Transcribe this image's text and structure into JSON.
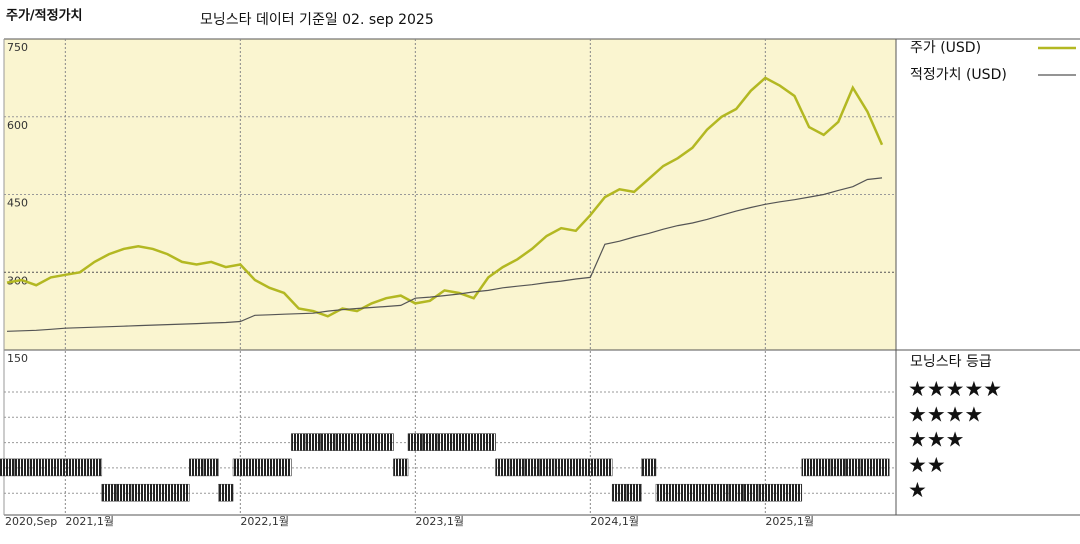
{
  "chart_data": [
    {
      "type": "line",
      "title": "주가/적정가치",
      "subtitle": "모닝스타 데이터 기준일 02. sep 2025",
      "x": [
        "2020-09",
        "2020-10",
        "2020-11",
        "2020-12",
        "2021-01",
        "2021-02",
        "2021-03",
        "2021-04",
        "2021-05",
        "2021-06",
        "2021-07",
        "2021-08",
        "2021-09",
        "2021-10",
        "2021-11",
        "2021-12",
        "2022-01",
        "2022-02",
        "2022-03",
        "2022-04",
        "2022-05",
        "2022-06",
        "2022-07",
        "2022-08",
        "2022-09",
        "2022-10",
        "2022-11",
        "2022-12",
        "2023-01",
        "2023-02",
        "2023-03",
        "2023-04",
        "2023-05",
        "2023-06",
        "2023-07",
        "2023-08",
        "2023-09",
        "2023-10",
        "2023-11",
        "2023-12",
        "2024-01",
        "2024-02",
        "2024-03",
        "2024-04",
        "2024-05",
        "2024-06",
        "2024-07",
        "2024-08",
        "2024-09",
        "2024-10",
        "2024-11",
        "2024-12",
        "2025-01",
        "2025-02",
        "2025-03",
        "2025-04",
        "2025-05",
        "2025-06",
        "2025-07",
        "2025-08",
        "2025-09"
      ],
      "xticks": [
        {
          "value": "2020-09",
          "label": "2020,Sep"
        },
        {
          "value": "2021-01",
          "label": "2021,1월"
        },
        {
          "value": "2022-01",
          "label": "2022,1월"
        },
        {
          "value": "2023-01",
          "label": "2023,1월"
        },
        {
          "value": "2024-01",
          "label": "2024,1월"
        },
        {
          "value": "2025-01",
          "label": "2025,1월"
        }
      ],
      "ylim": [
        150,
        750
      ],
      "yticks": [
        150,
        300,
        450,
        600,
        750
      ],
      "grid": true,
      "series": [
        {
          "name": "주가 (USD)",
          "color": "#b3b822",
          "values": [
            280,
            285,
            275,
            290,
            295,
            300,
            320,
            335,
            345,
            350,
            345,
            335,
            320,
            315,
            320,
            310,
            315,
            285,
            270,
            260,
            230,
            225,
            215,
            230,
            225,
            240,
            250,
            255,
            240,
            245,
            265,
            260,
            250,
            290,
            310,
            325,
            345,
            370,
            385,
            380,
            410,
            445,
            460,
            455,
            480,
            505,
            520,
            540,
            575,
            600,
            615,
            650,
            675,
            660,
            640,
            580,
            565,
            590,
            656,
            610,
            546
          ]
        },
        {
          "name": "적정가치 (USD)",
          "color": "#555555",
          "values": [
            186,
            187,
            188,
            190,
            192,
            193,
            194,
            195,
            196,
            197,
            198,
            199,
            200,
            201,
            202,
            203,
            205,
            217,
            218,
            219,
            220,
            221,
            225,
            228,
            230,
            232,
            234,
            236,
            250,
            252,
            255,
            258,
            262,
            265,
            270,
            273,
            276,
            280,
            283,
            287,
            290,
            354,
            360,
            368,
            375,
            383,
            390,
            395,
            402,
            410,
            418,
            425,
            431,
            436,
            440,
            445,
            450,
            458,
            465,
            479,
            482
          ]
        }
      ]
    },
    {
      "type": "rating",
      "title": "모닝스타 등급",
      "levels": [
        5,
        4,
        3,
        2,
        1
      ],
      "level_labels": [
        "★★★★★",
        "★★★★",
        "★★★",
        "★★",
        "★"
      ],
      "color": "#333333",
      "values": [
        2,
        2,
        2,
        2,
        2,
        2,
        2,
        1,
        1,
        1,
        1,
        1,
        1,
        2,
        2,
        1,
        2,
        2,
        2,
        2,
        3,
        3,
        3,
        3,
        3,
        3,
        3,
        2,
        3,
        3,
        3,
        3,
        3,
        3,
        2,
        2,
        2,
        2,
        2,
        2,
        2,
        2,
        1,
        1,
        2,
        1,
        1,
        1,
        1,
        1,
        1,
        1,
        1,
        1,
        1,
        2,
        2,
        2,
        2,
        2,
        2
      ]
    }
  ]
}
